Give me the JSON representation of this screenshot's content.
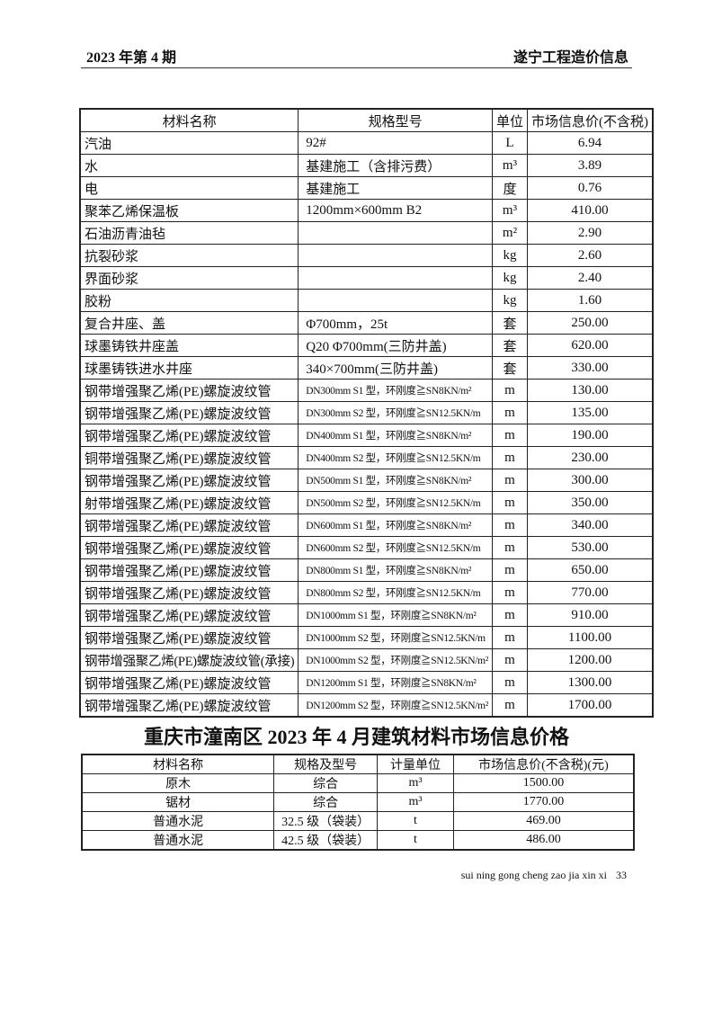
{
  "header": {
    "issue": "2023 年第 4 期",
    "publication": "遂宁工程造价信息"
  },
  "table1": {
    "columns": [
      "材料名称",
      "规格型号",
      "单位",
      "市场信息价(不含税)"
    ],
    "rows": [
      {
        "name": "汽油",
        "spec": "92#",
        "unit": "L",
        "price": "6.94"
      },
      {
        "name": "水",
        "spec": "基建施工（含排污费）",
        "unit": "m³",
        "price": "3.89"
      },
      {
        "name": "电",
        "spec": "基建施工",
        "unit": "度",
        "price": "0.76"
      },
      {
        "name": "聚苯乙烯保温板",
        "spec": "1200mm×600mm B2",
        "unit": "m³",
        "price": "410.00"
      },
      {
        "name": "石油沥青油毡",
        "spec": "",
        "unit": "m²",
        "price": "2.90"
      },
      {
        "name": "抗裂砂浆",
        "spec": "",
        "unit": "kg",
        "price": "2.60"
      },
      {
        "name": "界面砂浆",
        "spec": "",
        "unit": "kg",
        "price": "2.40"
      },
      {
        "name": "胶粉",
        "spec": "",
        "unit": "kg",
        "price": "1.60"
      },
      {
        "name": "复合井座、盖",
        "spec": "Φ700mm，25t",
        "unit": "套",
        "price": "250.00"
      },
      {
        "name": "球墨铸铁井座盖",
        "spec": "Q20  Φ700mm(三防井盖)",
        "unit": "套",
        "price": "620.00"
      },
      {
        "name": "球墨铸铁进水井座",
        "spec": "340×700mm(三防井盖)",
        "unit": "套",
        "price": "330.00"
      },
      {
        "name": "钢带增强聚乙烯(PE)螺旋波纹管",
        "spec": "DN300mm  S1 型，环刚度≧SN8KN/m²",
        "unit": "m",
        "price": "130.00"
      },
      {
        "name": "钢带增强聚乙烯(PE)螺旋波纹管",
        "spec": "DN300mm  S2 型，环刚度≧SN12.5KN/m",
        "unit": "m",
        "price": "135.00"
      },
      {
        "name": "钢带增强聚乙烯(PE)螺旋波纹管",
        "spec": "DN400mm  S1 型，环刚度≧SN8KN/m²",
        "unit": "m",
        "price": "190.00"
      },
      {
        "name": "铜带增强聚乙烯(PE)螺旋波纹管",
        "spec": "DN400mm  S2 型，环刚度≧SN12.5KN/m",
        "unit": "m",
        "price": "230.00"
      },
      {
        "name": "钢带增强聚乙烯(PE)螺旋波纹管",
        "spec": "DN500mm  S1 型，环刚度≧SN8KN/m²",
        "unit": "m",
        "price": "300.00"
      },
      {
        "name": "射带增强聚乙烯(PE)螺旋波纹管",
        "spec": "DN500mm  S2 型，环刚度≧SN12.5KN/m",
        "unit": "m",
        "price": "350.00"
      },
      {
        "name": "钢带增强聚乙烯(PE)螺旋波纹管",
        "spec": "DN600mm  S1 型，环刚度≧SN8KN/m²",
        "unit": "m",
        "price": "340.00"
      },
      {
        "name": "钢带增强聚乙烯(PE)螺旋波纹管",
        "spec": "DN600mm  S2 型，环刚度≧SN12.5KN/m",
        "unit": "m",
        "price": "530.00"
      },
      {
        "name": "钢带增强聚乙烯(PE)螺旋波纹管",
        "spec": "DN800mm  S1 型，环刚度≧SN8KN/m²",
        "unit": "m",
        "price": "650.00"
      },
      {
        "name": "钢带增强聚乙烯(PE)螺旋波纹管",
        "spec": "DN800mm  S2 型，环刚度≧SN12.5KN/m",
        "unit": "m",
        "price": "770.00"
      },
      {
        "name": "钢带增强聚乙烯(PE)螺旋波纹管",
        "spec": "DN1000mm  S1 型，环刚度≧SN8KN/m²",
        "unit": "m",
        "price": "910.00"
      },
      {
        "name": "钢带增强聚乙烯(PE)螺旋波纹管",
        "spec": "DN1000mm  S2 型，环刚度≧SN12.5KN/m",
        "unit": "m",
        "price": "1100.00"
      },
      {
        "name": "钢带增强聚乙烯(PE)螺旋波纹管(承接)",
        "spec": "DN1000mm  S2 型，环刚度≧SN12.5KN/m²",
        "unit": "m",
        "price": "1200.00"
      },
      {
        "name": "钢带增强聚乙烯(PE)螺旋波纹管",
        "spec": "DN1200mm  S1 型，环刚度≧SN8KN/m²",
        "unit": "m",
        "price": "1300.00"
      },
      {
        "name": "钢带增强聚乙烯(PE)螺旋波纹管",
        "spec": "DN1200mm  S2 型，环刚度≧SN12.5KN/m²",
        "unit": "m",
        "price": "1700.00"
      }
    ]
  },
  "section2": {
    "title": "重庆市潼南区 2023 年 4 月建筑材料市场信息价格",
    "columns": [
      "材料名称",
      "规格及型号",
      "计量单位",
      "市场信息价(不含税)(元)"
    ],
    "rows": [
      {
        "name": "原木",
        "spec": "综合",
        "unit": "m³",
        "price": "1500.00"
      },
      {
        "name": "锯材",
        "spec": "综合",
        "unit": "m³",
        "price": "1770.00"
      },
      {
        "name": "普通水泥",
        "spec": "32.5 级（袋装）",
        "unit": "t",
        "price": "469.00"
      },
      {
        "name": "普通水泥",
        "spec": "42.5 级（袋装）",
        "unit": "t",
        "price": "486.00"
      }
    ]
  },
  "footer": {
    "text": "sui ning gong cheng zao jia xin xi",
    "page": "33"
  }
}
